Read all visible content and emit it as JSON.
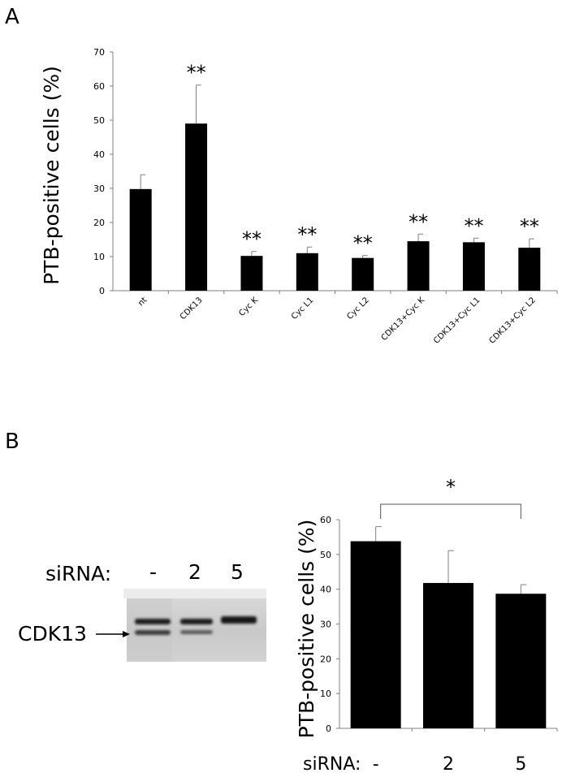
{
  "panel_a": {
    "letter": "A"
  },
  "panel_b": {
    "letter": "B"
  },
  "chart_data": [
    {
      "type": "bar",
      "ylabel": "PTB-positive cells (%)",
      "ylim": [
        0,
        70
      ],
      "yticks": [
        0,
        10,
        20,
        30,
        40,
        50,
        60,
        70
      ],
      "categories": [
        "nt",
        "CDK13",
        "Cyc K",
        "Cyc L1",
        "Cyc L2",
        "CDK13+Cyc K",
        "CDK13+Cyc L1",
        "CDK13+Cyc L2"
      ],
      "values": [
        29.8,
        49.0,
        10.2,
        11.0,
        9.6,
        14.5,
        14.2,
        12.6
      ],
      "errors": [
        4.2,
        11.3,
        1.3,
        1.8,
        0.7,
        2.1,
        1.2,
        2.6
      ],
      "annotations": [
        "",
        "**",
        "**",
        "**",
        "**",
        "**",
        "**",
        "**"
      ],
      "bar_color": "#000000"
    },
    {
      "type": "bar",
      "ylabel": "PTB-positive cells (%)",
      "ylim": [
        0,
        60
      ],
      "yticks": [
        0,
        10,
        20,
        30,
        40,
        50,
        60
      ],
      "categories": [
        "-",
        "2",
        "5"
      ],
      "category_prefix": "siRNA:",
      "values": [
        53.8,
        41.8,
        38.7
      ],
      "errors": [
        4.2,
        9.3,
        2.6
      ],
      "significance": {
        "from": 0,
        "to": 2,
        "label": "*"
      },
      "bar_color": "#000000"
    }
  ],
  "blot": {
    "siRNA_label": "siRNA:",
    "lanes": [
      "-",
      "2",
      "5"
    ],
    "protein_label": "CDK13"
  }
}
